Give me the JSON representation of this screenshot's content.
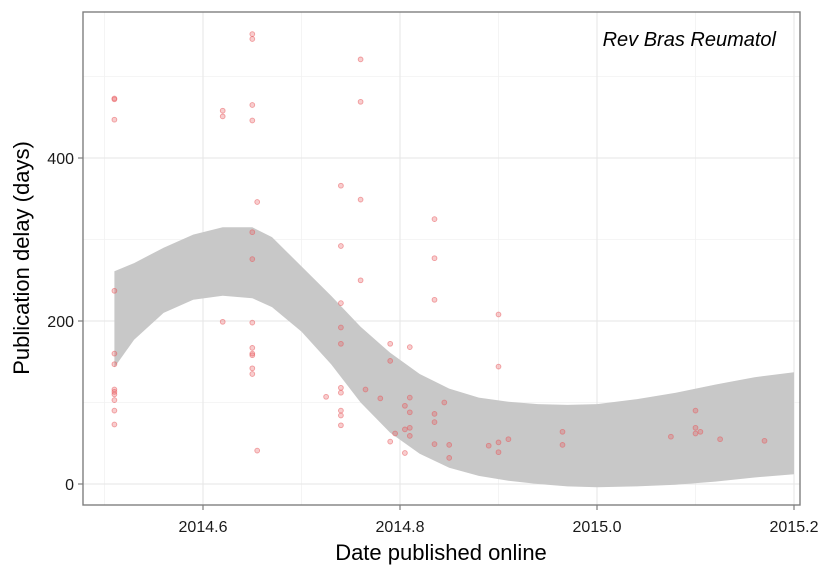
{
  "chart_data": {
    "type": "scatter",
    "title": "",
    "annotation": "Rev Bras Reumatol",
    "xlabel": "Date published online",
    "ylabel": "Publication delay (days)",
    "xlim": [
      2014.48,
      2015.2
    ],
    "ylim": [
      -25,
      580
    ],
    "x_ticks": [
      2014.6,
      2014.8,
      2015.0,
      2015.2
    ],
    "x_tick_labels": [
      "2014.6",
      "2014.8",
      "2015.0",
      "2015.2"
    ],
    "y_ticks": [
      0,
      200,
      400
    ],
    "y_tick_labels": [
      "0",
      "200",
      "400"
    ],
    "grid": true,
    "point_color": "#e8595c",
    "ribbon_color": "#c8c8c8",
    "points": [
      {
        "x": 2014.51,
        "y": 473
      },
      {
        "x": 2014.51,
        "y": 472
      },
      {
        "x": 2014.51,
        "y": 447
      },
      {
        "x": 2014.51,
        "y": 237
      },
      {
        "x": 2014.51,
        "y": 160
      },
      {
        "x": 2014.51,
        "y": 147
      },
      {
        "x": 2014.51,
        "y": 116
      },
      {
        "x": 2014.51,
        "y": 113
      },
      {
        "x": 2014.51,
        "y": 110
      },
      {
        "x": 2014.51,
        "y": 103
      },
      {
        "x": 2014.51,
        "y": 90
      },
      {
        "x": 2014.51,
        "y": 73
      },
      {
        "x": 2014.62,
        "y": 458
      },
      {
        "x": 2014.62,
        "y": 451
      },
      {
        "x": 2014.62,
        "y": 199
      },
      {
        "x": 2014.65,
        "y": 552
      },
      {
        "x": 2014.65,
        "y": 546
      },
      {
        "x": 2014.65,
        "y": 465
      },
      {
        "x": 2014.65,
        "y": 446
      },
      {
        "x": 2014.65,
        "y": 309
      },
      {
        "x": 2014.65,
        "y": 276
      },
      {
        "x": 2014.65,
        "y": 198
      },
      {
        "x": 2014.65,
        "y": 167
      },
      {
        "x": 2014.65,
        "y": 160
      },
      {
        "x": 2014.65,
        "y": 158
      },
      {
        "x": 2014.65,
        "y": 142
      },
      {
        "x": 2014.65,
        "y": 135
      },
      {
        "x": 2014.655,
        "y": 346
      },
      {
        "x": 2014.655,
        "y": 41
      },
      {
        "x": 2014.725,
        "y": 107
      },
      {
        "x": 2014.74,
        "y": 366
      },
      {
        "x": 2014.74,
        "y": 292
      },
      {
        "x": 2014.74,
        "y": 222
      },
      {
        "x": 2014.74,
        "y": 192
      },
      {
        "x": 2014.74,
        "y": 172
      },
      {
        "x": 2014.74,
        "y": 118
      },
      {
        "x": 2014.74,
        "y": 112
      },
      {
        "x": 2014.74,
        "y": 90
      },
      {
        "x": 2014.74,
        "y": 84
      },
      {
        "x": 2014.74,
        "y": 72
      },
      {
        "x": 2014.76,
        "y": 521
      },
      {
        "x": 2014.76,
        "y": 469
      },
      {
        "x": 2014.76,
        "y": 349
      },
      {
        "x": 2014.76,
        "y": 250
      },
      {
        "x": 2014.765,
        "y": 116
      },
      {
        "x": 2014.78,
        "y": 105
      },
      {
        "x": 2014.79,
        "y": 172
      },
      {
        "x": 2014.79,
        "y": 151
      },
      {
        "x": 2014.79,
        "y": 52
      },
      {
        "x": 2014.795,
        "y": 62
      },
      {
        "x": 2014.805,
        "y": 96
      },
      {
        "x": 2014.805,
        "y": 67
      },
      {
        "x": 2014.805,
        "y": 38
      },
      {
        "x": 2014.81,
        "y": 168
      },
      {
        "x": 2014.81,
        "y": 106
      },
      {
        "x": 2014.81,
        "y": 88
      },
      {
        "x": 2014.81,
        "y": 69
      },
      {
        "x": 2014.81,
        "y": 59
      },
      {
        "x": 2014.835,
        "y": 325
      },
      {
        "x": 2014.835,
        "y": 277
      },
      {
        "x": 2014.835,
        "y": 226
      },
      {
        "x": 2014.835,
        "y": 86
      },
      {
        "x": 2014.835,
        "y": 76
      },
      {
        "x": 2014.835,
        "y": 49
      },
      {
        "x": 2014.845,
        "y": 100
      },
      {
        "x": 2014.85,
        "y": 48
      },
      {
        "x": 2014.85,
        "y": 32
      },
      {
        "x": 2014.89,
        "y": 47
      },
      {
        "x": 2014.9,
        "y": 208
      },
      {
        "x": 2014.9,
        "y": 144
      },
      {
        "x": 2014.9,
        "y": 51
      },
      {
        "x": 2014.9,
        "y": 39
      },
      {
        "x": 2014.91,
        "y": 55
      },
      {
        "x": 2014.965,
        "y": 64
      },
      {
        "x": 2014.965,
        "y": 48
      },
      {
        "x": 2015.075,
        "y": 58
      },
      {
        "x": 2015.1,
        "y": 90
      },
      {
        "x": 2015.1,
        "y": 69
      },
      {
        "x": 2015.1,
        "y": 62
      },
      {
        "x": 2015.105,
        "y": 64
      },
      {
        "x": 2015.125,
        "y": 55
      },
      {
        "x": 2015.17,
        "y": 53
      }
    ],
    "ribbon": [
      {
        "x": 2014.51,
        "lower": 143,
        "upper": 261
      },
      {
        "x": 2014.53,
        "lower": 177,
        "upper": 271
      },
      {
        "x": 2014.56,
        "lower": 210,
        "upper": 290
      },
      {
        "x": 2014.59,
        "lower": 226,
        "upper": 306
      },
      {
        "x": 2014.62,
        "lower": 231,
        "upper": 315
      },
      {
        "x": 2014.65,
        "lower": 228,
        "upper": 315
      },
      {
        "x": 2014.67,
        "lower": 217,
        "upper": 303
      },
      {
        "x": 2014.7,
        "lower": 187,
        "upper": 267
      },
      {
        "x": 2014.73,
        "lower": 147,
        "upper": 231
      },
      {
        "x": 2014.76,
        "lower": 100,
        "upper": 193
      },
      {
        "x": 2014.79,
        "lower": 63,
        "upper": 161
      },
      {
        "x": 2014.82,
        "lower": 37,
        "upper": 135
      },
      {
        "x": 2014.85,
        "lower": 20,
        "upper": 117
      },
      {
        "x": 2014.88,
        "lower": 10,
        "upper": 106
      },
      {
        "x": 2014.91,
        "lower": 4,
        "upper": 101
      },
      {
        "x": 2014.94,
        "lower": 0,
        "upper": 98
      },
      {
        "x": 2014.97,
        "lower": -3,
        "upper": 97
      },
      {
        "x": 2015.0,
        "lower": -4,
        "upper": 98
      },
      {
        "x": 2015.04,
        "lower": -3,
        "upper": 104
      },
      {
        "x": 2015.08,
        "lower": -1,
        "upper": 112
      },
      {
        "x": 2015.12,
        "lower": 3,
        "upper": 122
      },
      {
        "x": 2015.16,
        "lower": 8,
        "upper": 131
      },
      {
        "x": 2015.2,
        "lower": 12,
        "upper": 137
      }
    ]
  }
}
